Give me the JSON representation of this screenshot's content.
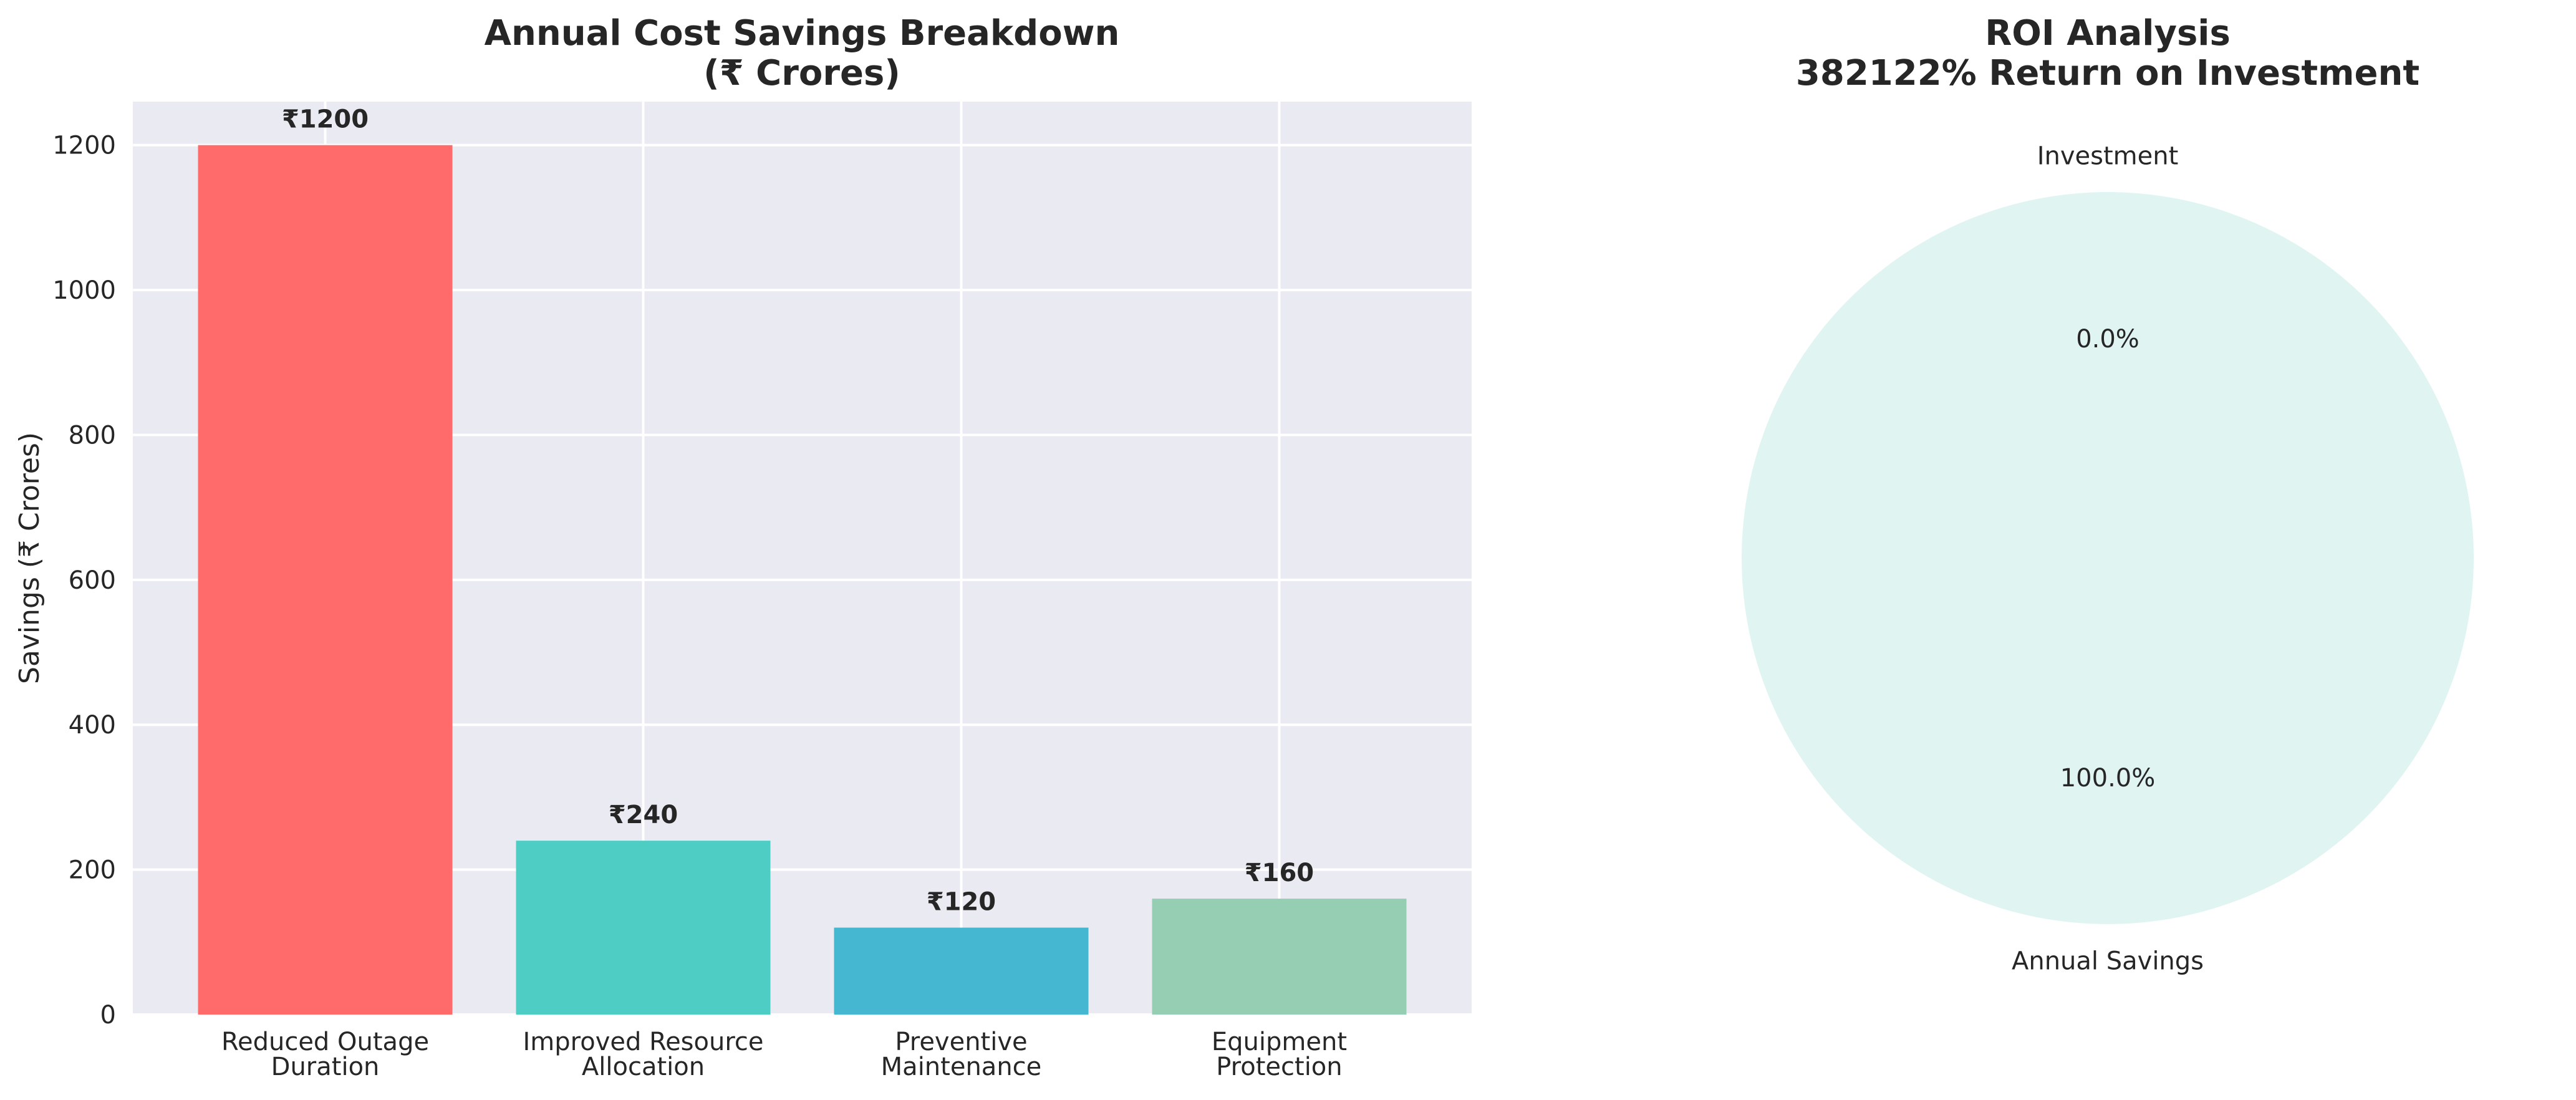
{
  "chart_data": [
    {
      "type": "bar",
      "title_line1": "Annual Cost Savings Breakdown",
      "title_line2": "(₹ Crores)",
      "ylabel": "Savings (₹ Crores)",
      "xlabel": "",
      "categories": [
        [
          "Reduced Outage",
          "Duration"
        ],
        [
          "Improved Resource",
          "Allocation"
        ],
        [
          "Preventive",
          "Maintenance"
        ],
        [
          "Equipment",
          "Protection"
        ]
      ],
      "values": [
        1200,
        240,
        120,
        160
      ],
      "value_labels": [
        "₹1200",
        "₹240",
        "₹120",
        "₹160"
      ],
      "colors": [
        "#ff6b6b",
        "#4ecdc4",
        "#45b7d1",
        "#96ceb4"
      ],
      "ylim": [
        0,
        1260
      ],
      "yticks": [
        0,
        200,
        400,
        600,
        800,
        1000,
        1200
      ],
      "grid": true,
      "background": "#eaeaf2"
    },
    {
      "type": "pie",
      "title_line1": "ROI Analysis",
      "title_line2": "382122% Return on Investment",
      "slices": [
        {
          "label": "Investment",
          "percent_label": "0.0%",
          "value": 0.0,
          "color": "#ffeaa7"
        },
        {
          "label": "Annual Savings",
          "percent_label": "100.0%",
          "value": 100.0,
          "color": "#e0f5f2"
        }
      ]
    }
  ]
}
